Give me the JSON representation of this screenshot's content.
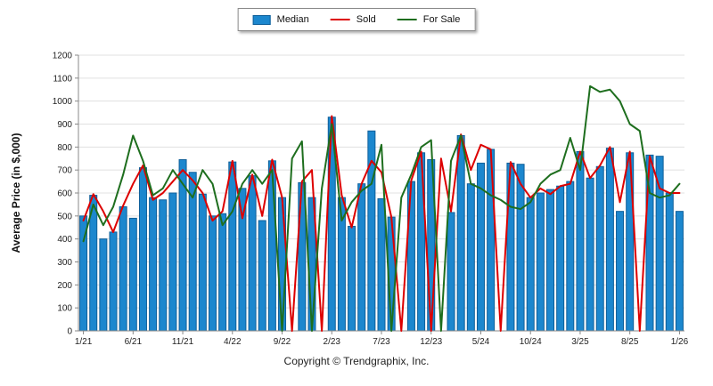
{
  "chart_data": {
    "type": "bar",
    "title": "",
    "ylabel": "Average Price (in $,000)",
    "xlabel": "",
    "ylim": [
      0,
      1200
    ],
    "ytick_step": 100,
    "xtick_every": 5,
    "grid": true,
    "legend_position": "top-center",
    "x_tick_labels": [
      "1/21",
      "6/21",
      "11/21",
      "4/22",
      "9/22",
      "2/23",
      "7/23",
      "12/23",
      "5/24",
      "10/24",
      "3/25",
      "8/25",
      "1/26"
    ],
    "categories": [
      "1/21",
      "2/21",
      "3/21",
      "4/21",
      "5/21",
      "6/21",
      "7/21",
      "8/21",
      "9/21",
      "10/21",
      "11/21",
      "12/21",
      "1/22",
      "2/22",
      "3/22",
      "4/22",
      "5/22",
      "6/22",
      "7/22",
      "8/22",
      "9/22",
      "10/22",
      "11/22",
      "12/22",
      "1/23",
      "2/23",
      "3/23",
      "4/23",
      "5/23",
      "6/23",
      "7/23",
      "8/23",
      "9/23",
      "10/23",
      "11/23",
      "12/23",
      "1/24",
      "2/24",
      "3/24",
      "4/24",
      "5/24",
      "6/24",
      "7/24",
      "8/24",
      "9/24",
      "10/24",
      "11/24",
      "12/24",
      "1/25",
      "2/25",
      "3/25",
      "4/25",
      "5/25",
      "6/25",
      "7/25",
      "8/25",
      "9/25",
      "10/25",
      "11/25",
      "12/25",
      "1/26"
    ],
    "series": [
      {
        "name": "Median",
        "type": "bar",
        "color": "#1c87ce",
        "border": "#0f5f99",
        "values": [
          500,
          590,
          400,
          430,
          540,
          490,
          710,
          580,
          570,
          600,
          745,
          690,
          595,
          500,
          510,
          735,
          620,
          675,
          480,
          740,
          580,
          0,
          645,
          580,
          0,
          930,
          580,
          455,
          640,
          870,
          575,
          495,
          0,
          650,
          775,
          745,
          0,
          515,
          850,
          640,
          730,
          790,
          0,
          730,
          725,
          580,
          600,
          615,
          630,
          650,
          780,
          665,
          715,
          795,
          520,
          775,
          0,
          765,
          760,
          600,
          520
        ]
      },
      {
        "name": "Sold",
        "type": "line",
        "color": "#dd0000",
        "values": [
          480,
          595,
          520,
          430,
          545,
          640,
          720,
          570,
          600,
          650,
          700,
          655,
          600,
          480,
          520,
          740,
          490,
          680,
          500,
          745,
          580,
          0,
          650,
          700,
          0,
          935,
          590,
          450,
          640,
          740,
          690,
          495,
          0,
          655,
          780,
          0,
          750,
          520,
          855,
          700,
          810,
          790,
          0,
          735,
          640,
          580,
          620,
          595,
          630,
          640,
          780,
          665,
          720,
          800,
          560,
          780,
          0,
          760,
          620,
          600,
          600
        ]
      },
      {
        "name": "For Sale",
        "type": "line",
        "color": "#1e6e1e",
        "values": [
          390,
          550,
          460,
          540,
          680,
          850,
          740,
          590,
          620,
          700,
          640,
          580,
          700,
          640,
          460,
          520,
          640,
          700,
          640,
          700,
          0,
          750,
          825,
          0,
          620,
          900,
          480,
          560,
          610,
          640,
          810,
          0,
          580,
          680,
          800,
          830,
          0,
          740,
          850,
          640,
          620,
          590,
          570,
          540,
          530,
          560,
          640,
          680,
          700,
          840,
          700,
          1065,
          1040,
          1050,
          1000,
          900,
          870,
          600,
          580,
          590,
          640
        ]
      }
    ]
  },
  "footer": {
    "copyright": "Copyright © Trendgraphix, Inc."
  }
}
